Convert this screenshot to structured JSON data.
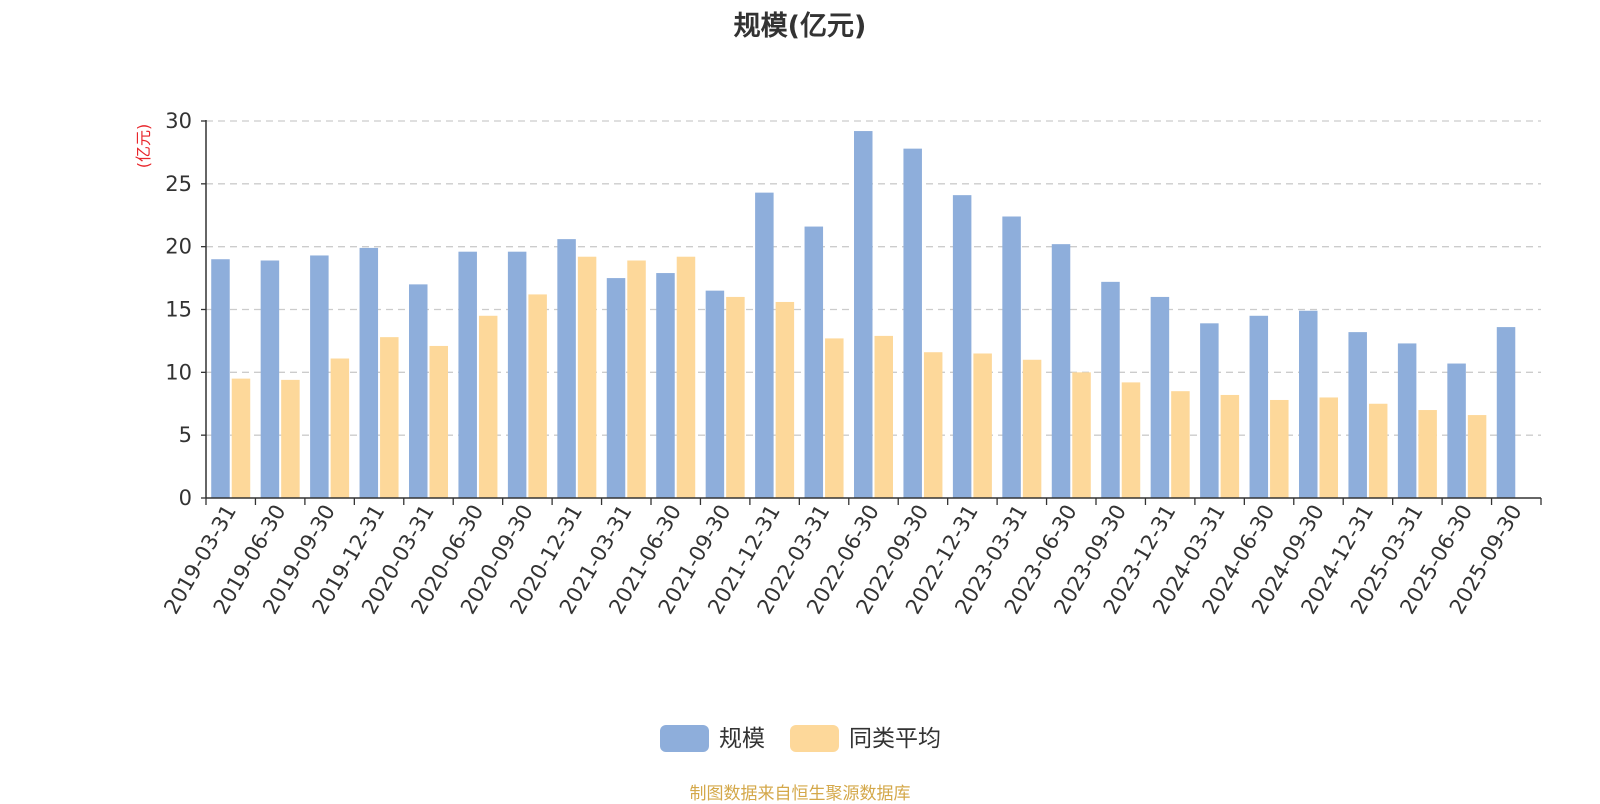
{
  "chart_data": {
    "type": "bar",
    "title": "规模(亿元)",
    "ylabel": "(亿元)",
    "xlabel": "",
    "ylim": [
      0,
      30
    ],
    "yticks": [
      0,
      5,
      10,
      15,
      20,
      25,
      30
    ],
    "grid": true,
    "legend_position": "bottom-center",
    "categories": [
      "2019-03-31",
      "2019-06-30",
      "2019-09-30",
      "2019-12-31",
      "2020-03-31",
      "2020-06-30",
      "2020-09-30",
      "2020-12-31",
      "2021-03-31",
      "2021-06-30",
      "2021-09-30",
      "2021-12-31",
      "2022-03-31",
      "2022-06-30",
      "2022-09-30",
      "2022-12-31",
      "2023-03-31",
      "2023-06-30",
      "2023-09-30",
      "2023-12-31",
      "2024-03-31",
      "2024-06-30",
      "2024-09-30",
      "2024-12-31",
      "2025-03-31",
      "2025-06-30",
      "2025-09-30"
    ],
    "series": [
      {
        "name": "规模",
        "color": "#8eaedb",
        "values": [
          19.0,
          18.9,
          19.3,
          19.9,
          17.0,
          19.6,
          19.6,
          20.6,
          17.5,
          17.9,
          16.5,
          24.3,
          21.6,
          29.2,
          27.8,
          24.1,
          22.4,
          20.2,
          17.2,
          16.0,
          13.9,
          14.5,
          14.9,
          13.2,
          12.3,
          10.7,
          13.6
        ]
      },
      {
        "name": "同类平均",
        "color": "#fdd89a",
        "values": [
          9.5,
          9.4,
          11.1,
          12.8,
          12.1,
          14.5,
          16.2,
          19.2,
          18.9,
          19.2,
          16.0,
          15.6,
          12.7,
          12.9,
          11.6,
          11.5,
          11.0,
          10.0,
          9.2,
          8.5,
          8.2,
          7.8,
          8.0,
          7.5,
          7.0,
          6.6,
          null
        ]
      }
    ]
  },
  "source_note": "制图数据来自恒生聚源数据库",
  "colors": {
    "ylabel": "#e8262b",
    "grid": "#cccccc",
    "axis": "#333333",
    "text": "#333333",
    "source": "#d4a84a"
  }
}
